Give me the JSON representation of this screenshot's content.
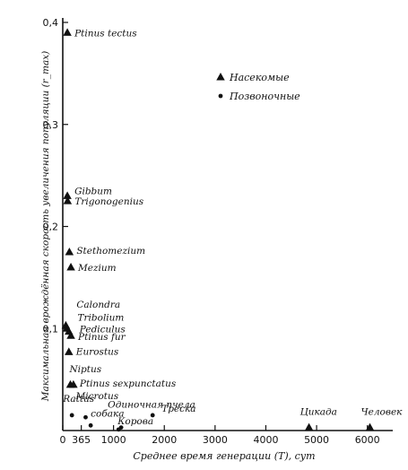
{
  "chart_data": {
    "type": "scatter",
    "title": "",
    "xlabel": "Среднее время генерации (T), сут",
    "ylabel": "Максимальная врождённая скорость увеличения популяции (r_max)",
    "xlim": [
      0,
      6500
    ],
    "ylim": [
      0,
      0.4
    ],
    "x_ticks": [
      {
        "value": 0,
        "label": "0"
      },
      {
        "value": 365,
        "label": "365"
      },
      {
        "value": 1000,
        "label": "1000"
      },
      {
        "value": 2000,
        "label": "2000"
      },
      {
        "value": 3000,
        "label": "3000"
      },
      {
        "value": 4000,
        "label": "4000"
      },
      {
        "value": 5000,
        "label": "5000"
      },
      {
        "value": 6000,
        "label": "6000"
      }
    ],
    "y_ticks": [
      {
        "value": 0.1,
        "label": "0,1"
      },
      {
        "value": 0.2,
        "label": "0,2"
      },
      {
        "value": 0.3,
        "label": "0,3"
      },
      {
        "value": 0.4,
        "label": "0,4"
      }
    ],
    "grid": false,
    "legend_position": "top-right",
    "series": [
      {
        "name": "Насекомые",
        "marker": "triangle",
        "points": [
          {
            "label": "Ptinus tectus",
            "x": 90,
            "y": 0.39
          },
          {
            "label": "Gibbum",
            "x": 90,
            "y": 0.23
          },
          {
            "label": "Trigonogenius",
            "x": 95,
            "y": 0.225
          },
          {
            "label": "Stethomezium",
            "x": 130,
            "y": 0.175
          },
          {
            "label": "Mezium",
            "x": 160,
            "y": 0.16
          },
          {
            "label": "Calondra",
            "x": 60,
            "y": 0.103
          },
          {
            "label": "Tribolium",
            "x": 80,
            "y": 0.1
          },
          {
            "label": "Pediculus",
            "x": 120,
            "y": 0.097
          },
          {
            "label": "Ptinus fur",
            "x": 160,
            "y": 0.093
          },
          {
            "label": "Eurostus",
            "x": 120,
            "y": 0.077
          },
          {
            "label": "Niptus",
            "x": 150,
            "y": 0.045
          },
          {
            "label": "Ptinus sexpunctatus",
            "x": 210,
            "y": 0.045
          },
          {
            "label": "Цикада",
            "x": 4850,
            "y": 0.003
          },
          {
            "label": "Человек",
            "x": 6050,
            "y": 0.003
          }
        ]
      },
      {
        "name": "Позвоночные",
        "marker": "dot",
        "points": [
          {
            "label": "Rattus",
            "x": 180,
            "y": 0.015
          },
          {
            "label": "Microtus",
            "x": 450,
            "y": 0.013
          },
          {
            "label": "собака",
            "x": 550,
            "y": 0.005
          },
          {
            "label": "Одиночная пчела",
            "x": 1150,
            "y": 0.003
          },
          {
            "label": "Корова",
            "x": 1100,
            "y": 0.001
          },
          {
            "label": "Треска",
            "x": 1770,
            "y": 0.015
          }
        ]
      }
    ]
  }
}
